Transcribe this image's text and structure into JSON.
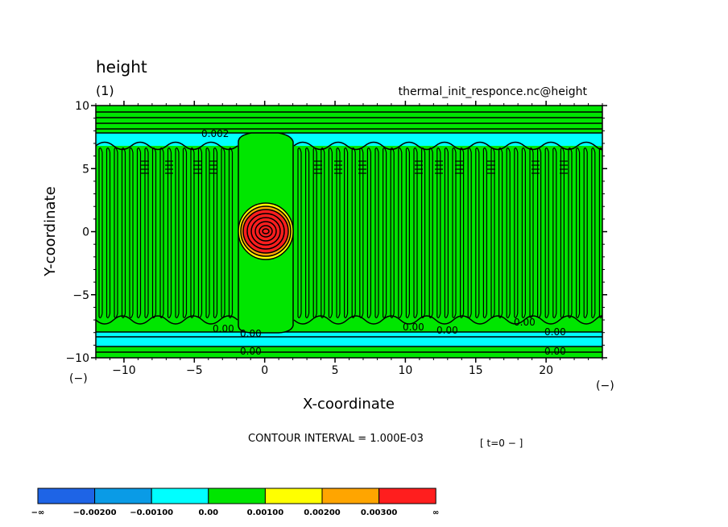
{
  "chart_data": {
    "type": "contour",
    "title": "height",
    "subtitle": "(1)",
    "source_label": "thermal_init_responce.nc@height",
    "xlabel": "X-coordinate",
    "ylabel": "Y-coordinate",
    "x_unit": "(−)",
    "y_unit": "(−)",
    "xlim": [
      -12,
      24
    ],
    "ylim": [
      -10,
      10
    ],
    "x_ticks": [
      -10,
      -5,
      0,
      5,
      10,
      15,
      20
    ],
    "y_ticks": [
      -10,
      -5,
      0,
      5,
      10
    ],
    "x_tick_labels": [
      "−10",
      "−5",
      "0",
      "5",
      "10",
      "15",
      "20"
    ],
    "y_tick_labels": [
      "−10",
      "−5",
      "0",
      "5",
      "10"
    ],
    "contour_interval_text": "CONTOUR INTERVAL = 1.000E-03",
    "time_text": "[ t=0 − ]",
    "contour_labels": [
      "0.002",
      "0.00",
      "0.00",
      "0.00",
      "0.00",
      "0.00",
      "0.00",
      "0.00",
      "0.00"
    ],
    "colorbar": {
      "colors": [
        "#1e64e6",
        "#0a9be6",
        "#00ffff",
        "#00e600",
        "#ffff00",
        "#ffa500",
        "#ff1e1e"
      ],
      "labels": [
        "−∞",
        "−0.00200",
        "−0.00100",
        "0.00",
        "0.00100",
        "0.00200",
        "0.00300",
        "∞"
      ]
    }
  }
}
